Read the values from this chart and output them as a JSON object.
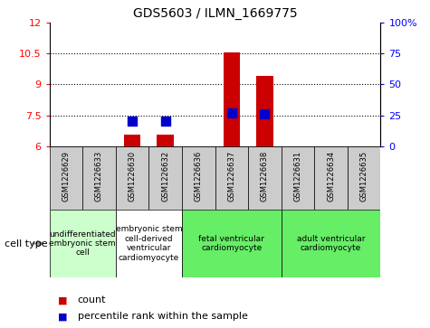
{
  "title": "GDS5603 / ILMN_1669775",
  "samples": [
    "GSM1226629",
    "GSM1226633",
    "GSM1226630",
    "GSM1226632",
    "GSM1226636",
    "GSM1226637",
    "GSM1226638",
    "GSM1226631",
    "GSM1226634",
    "GSM1226635"
  ],
  "count_values": [
    null,
    null,
    6.55,
    6.55,
    null,
    10.55,
    9.4,
    null,
    null,
    null
  ],
  "percentile_values": [
    null,
    null,
    20.0,
    20.0,
    null,
    27.0,
    26.0,
    null,
    null,
    null
  ],
  "ylim": [
    6,
    12
  ],
  "yticks": [
    6,
    7.5,
    9,
    10.5,
    12
  ],
  "ytick_labels": [
    "6",
    "7.5",
    "9",
    "10.5",
    "12"
  ],
  "right_yticks": [
    0,
    25,
    50,
    75,
    100
  ],
  "right_ytick_labels": [
    "0",
    "25",
    "50",
    "75",
    "100%"
  ],
  "cell_type_groups": [
    {
      "label": "undifferentiated\nembryonic stem\ncell",
      "indices": [
        0,
        1
      ],
      "color": "#ccffcc"
    },
    {
      "label": "embryonic stem\ncell-derived\nventricular\ncardiomyocyte",
      "indices": [
        2,
        3
      ],
      "color": "#ffffff"
    },
    {
      "label": "fetal ventricular\ncardiomyocyte",
      "indices": [
        4,
        5,
        6
      ],
      "color": "#66ee66"
    },
    {
      "label": "adult ventricular\ncardiomyocyte",
      "indices": [
        7,
        8,
        9
      ],
      "color": "#66ee66"
    }
  ],
  "bar_color": "#cc0000",
  "dot_color": "#0000cc",
  "bar_width": 0.5,
  "dot_size": 50,
  "sample_box_color": "#cccccc",
  "legend_count_label": "count",
  "legend_percentile_label": "percentile rank within the sample"
}
